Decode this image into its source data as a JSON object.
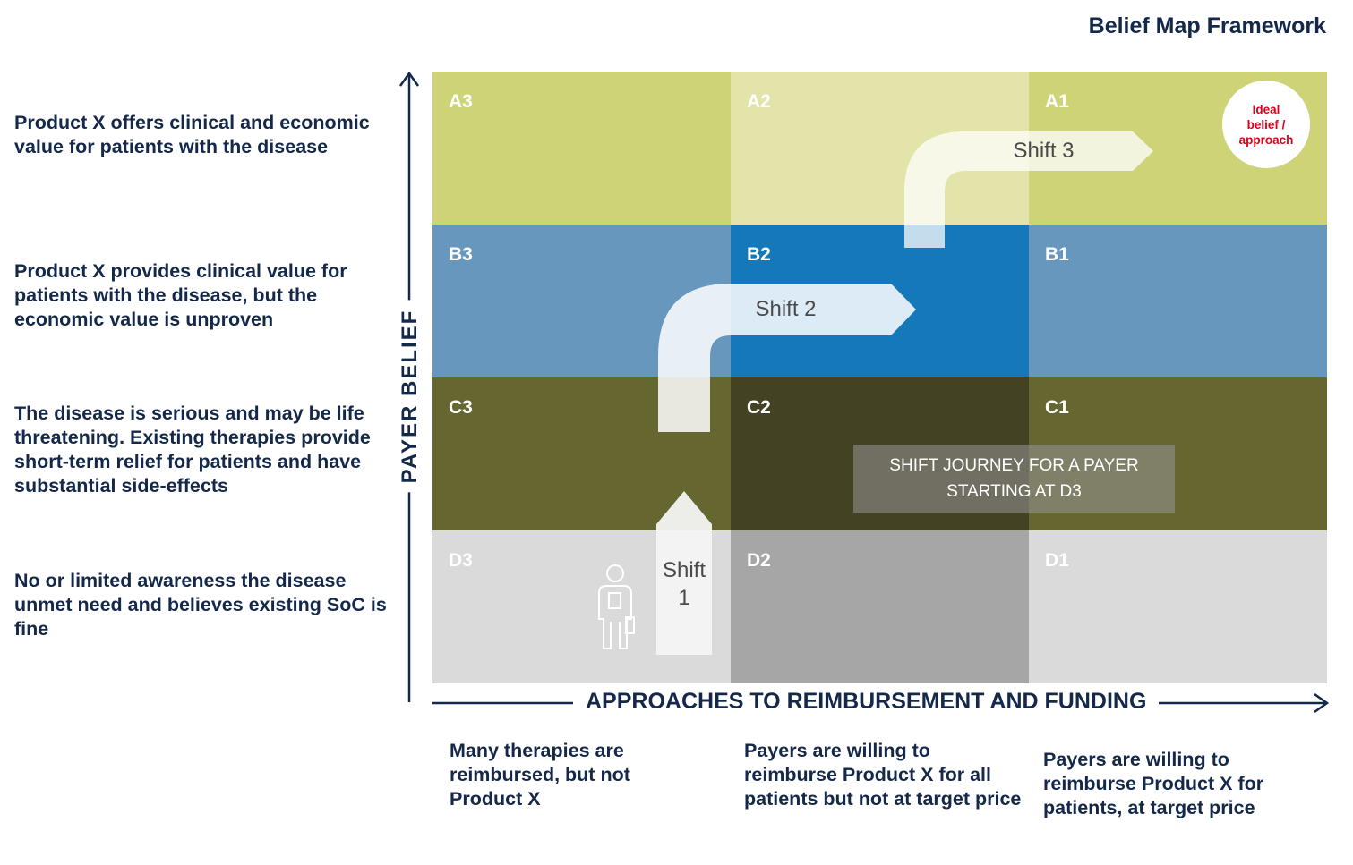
{
  "title": "Belief Map Framework",
  "rows": [
    {
      "id": "A",
      "description": "Product X offers clinical and economic value for  patients with the disease"
    },
    {
      "id": "B",
      "description": "Product X  provides clinical value for patients with the  disease,  but the economic value is unproven"
    },
    {
      "id": "C",
      "description": "The disease is serious and may be life threatening. Existing therapies provide short-term relief for patients and have substantial side-effects"
    },
    {
      "id": "D",
      "description": "No or limited awareness the disease unmet need and believes existing SoC is fine"
    }
  ],
  "columns": [
    {
      "id": "3",
      "description": "Many therapies are reimbursed, but not Product X"
    },
    {
      "id": "2",
      "description": "Payers are willing to reimburse Product X for all patients but not at target price"
    },
    {
      "id": "1",
      "description": "Payers are willing to reimburse Product X  for patients, at target price"
    }
  ],
  "cells": {
    "A3": {
      "label": "A3",
      "color": "#cfd378"
    },
    "A2": {
      "label": "A2",
      "color": "#e2e4a9"
    },
    "A1": {
      "label": "A1",
      "color": "#cfd378"
    },
    "B3": {
      "label": "B3",
      "color": "#6897bd"
    },
    "B2": {
      "label": "B2",
      "color": "#1478b9"
    },
    "B1": {
      "label": "B1",
      "color": "#6897bd"
    },
    "C3": {
      "label": "C3",
      "color": "#666631"
    },
    "C2": {
      "label": "C2",
      "color": "#434222"
    },
    "C1": {
      "label": "C1",
      "color": "#666631"
    },
    "D3": {
      "label": "D3",
      "color": "#dadada"
    },
    "D2": {
      "label": "D2",
      "color": "#a6a6a6"
    },
    "D1": {
      "label": "D1",
      "color": "#dadada"
    }
  },
  "axes": {
    "y_title": "PAYER BELIEF",
    "x_title": "APPROACHES TO REIMBURSEMENT AND FUNDING"
  },
  "shifts": {
    "shift1_line1": "Shift",
    "shift1_line2": "1",
    "shift2": "Shift 2",
    "shift3": "Shift 3"
  },
  "journey_box": {
    "line1": "SHIFT JOURNEY FOR A PAYER",
    "line2": "STARTING AT D3"
  },
  "ideal": {
    "line1": "Ideal",
    "line2": "belief /",
    "line3": "approach"
  },
  "icons": {
    "person": "doctor-with-clipboard-icon",
    "y_arrow": "arrow-up-icon",
    "x_arrow": "arrow-right-icon"
  }
}
